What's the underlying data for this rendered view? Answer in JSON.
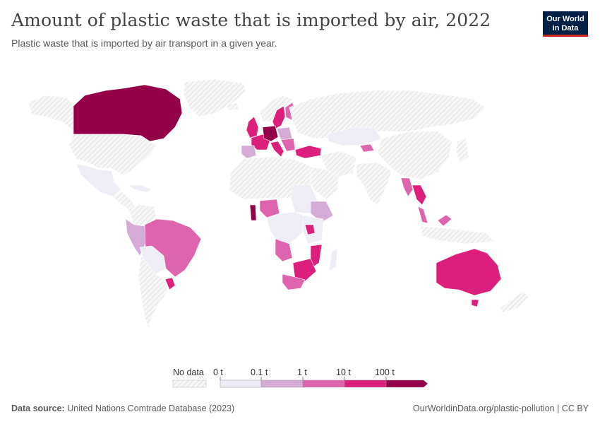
{
  "header": {
    "title": "Amount of plastic waste that is imported by air, 2022",
    "subtitle": "Plastic waste that is imported by air transport in a given year."
  },
  "logo": {
    "line1": "Our World",
    "line2": "in Data"
  },
  "legend": {
    "no_data_label": "No data",
    "bins": [
      "0 t",
      "0.1 t",
      "1 t",
      "10 t",
      "100 t"
    ],
    "colors": {
      "no_data": "#f2f2f2",
      "bin_0": "#efedf5",
      "bin_1": "#d4acd5",
      "bin_2": "#de64ad",
      "bin_3": "#dd1f7c",
      "bin_4": "#930047"
    }
  },
  "footer": {
    "source_label": "Data source:",
    "source_text": "United Nations Comtrade Database (2023)",
    "right_text": "OurWorldinData.org/plastic-pollution | CC BY"
  }
}
